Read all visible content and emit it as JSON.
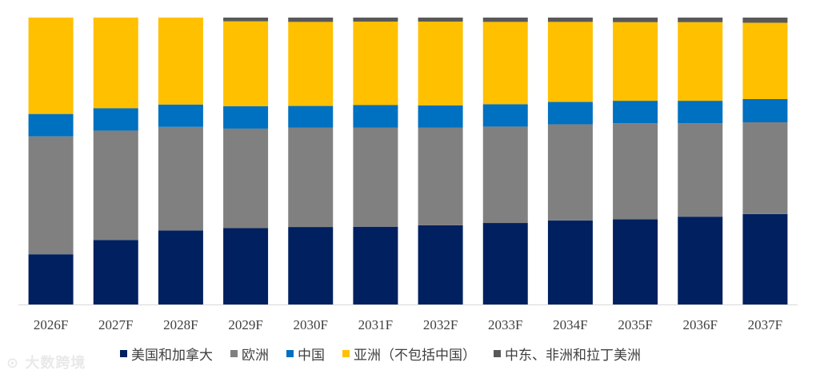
{
  "chart_data": {
    "type": "bar",
    "stacked": true,
    "normalized": true,
    "categories": [
      "2026F",
      "2027F",
      "2028F",
      "2029F",
      "2030F",
      "2031F",
      "2032F",
      "2033F",
      "2034F",
      "2035F",
      "2036F",
      "2037F"
    ],
    "series": [
      {
        "name": "美国和加拿大",
        "color": "#002060",
        "values": [
          17.5,
          22.5,
          25.8,
          26.6,
          27.0,
          27.1,
          27.6,
          28.4,
          29.3,
          29.7,
          30.6,
          31.5
        ]
      },
      {
        "name": "欧洲",
        "color": "#808080",
        "values": [
          41.1,
          38.1,
          36.1,
          34.7,
          34.7,
          34.6,
          34.0,
          33.6,
          33.5,
          33.5,
          32.6,
          32.0
        ]
      },
      {
        "name": "中国",
        "color": "#0070C0",
        "values": [
          7.8,
          7.8,
          7.8,
          7.8,
          7.5,
          7.8,
          7.8,
          7.8,
          7.8,
          7.8,
          7.8,
          8.1
        ]
      },
      {
        "name": "亚洲（不包括中国）",
        "color": "#FFC000",
        "values": [
          33.6,
          31.6,
          30.3,
          29.6,
          29.3,
          29.1,
          29.2,
          28.7,
          27.9,
          27.4,
          27.4,
          26.6
        ]
      },
      {
        "name": "中东、非洲和拉丁美洲",
        "color": "#595959",
        "values": [
          0.0,
          0.0,
          0.0,
          1.3,
          1.5,
          1.4,
          1.4,
          1.5,
          1.5,
          1.6,
          1.6,
          1.8
        ]
      }
    ],
    "ylim": [
      0,
      100
    ],
    "grid": false,
    "legend_position": "bottom"
  },
  "watermark": "大数跨境"
}
